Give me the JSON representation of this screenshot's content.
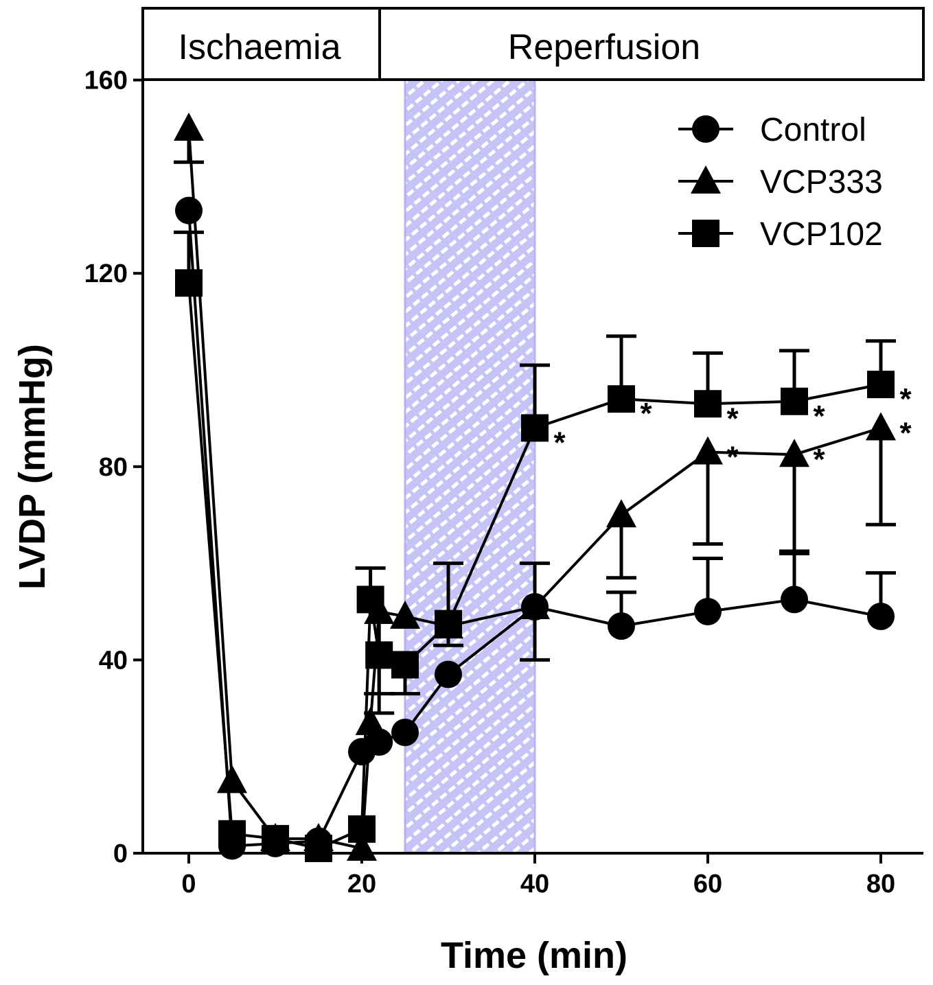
{
  "chart_data": {
    "type": "line",
    "title": "",
    "xlabel": "Time (min)",
    "ylabel": "LVDP (mmHg)",
    "xlim": [
      -5,
      85
    ],
    "ylim": [
      0,
      160
    ],
    "xticks": [
      0,
      20,
      40,
      60,
      80
    ],
    "yticks": [
      0,
      40,
      80,
      120,
      160
    ],
    "phases": [
      {
        "label": "Ischaemia"
      },
      {
        "label": "Reperfusion"
      }
    ],
    "shaded_interval": [
      25,
      40
    ],
    "legend_position": "top-right",
    "x": [
      0,
      5,
      10,
      15,
      20,
      21,
      22,
      25,
      30,
      40,
      50,
      60,
      70,
      80
    ],
    "series": [
      {
        "name": "Control",
        "marker": "circle",
        "values": [
          133,
          1.5,
          2,
          2.5,
          21,
          null,
          23,
          25,
          37,
          51,
          47,
          50,
          52.5,
          49
        ],
        "err_upper": [
          null,
          null,
          null,
          null,
          null,
          null,
          null,
          null,
          null,
          60,
          54,
          61,
          62.5,
          58
        ],
        "err_lower": [
          null,
          null,
          null,
          null,
          null,
          null,
          null,
          null,
          null,
          40,
          null,
          null,
          null,
          null
        ]
      },
      {
        "name": "VCP333",
        "marker": "triangle",
        "values": [
          150,
          15,
          3,
          3,
          1,
          27,
          50,
          49,
          47,
          51,
          70,
          83,
          82.5,
          88
        ],
        "err_upper": [
          143,
          null,
          null,
          null,
          null,
          null,
          null,
          null,
          null,
          null,
          null,
          null,
          null,
          null
        ],
        "err_lower": [
          null,
          null,
          null,
          null,
          null,
          null,
          29,
          null,
          null,
          null,
          57,
          64,
          62,
          68
        ],
        "significant": [
          false,
          false,
          false,
          false,
          false,
          false,
          false,
          false,
          false,
          false,
          false,
          true,
          true,
          true
        ]
      },
      {
        "name": "VCP102",
        "marker": "square",
        "values": [
          118,
          4,
          3,
          1,
          5,
          52.5,
          41,
          39,
          47.5,
          88,
          94,
          93,
          93.5,
          97
        ],
        "err_upper": [
          128.5,
          null,
          null,
          null,
          null,
          59,
          null,
          null,
          60,
          101,
          107,
          103.5,
          104,
          106
        ],
        "err_lower": [
          null,
          null,
          null,
          null,
          null,
          null,
          33,
          33,
          43,
          null,
          null,
          null,
          null,
          null
        ],
        "significant": [
          false,
          false,
          false,
          false,
          false,
          false,
          false,
          false,
          false,
          true,
          true,
          true,
          true,
          true
        ]
      }
    ],
    "annotation_symbol": "*"
  }
}
